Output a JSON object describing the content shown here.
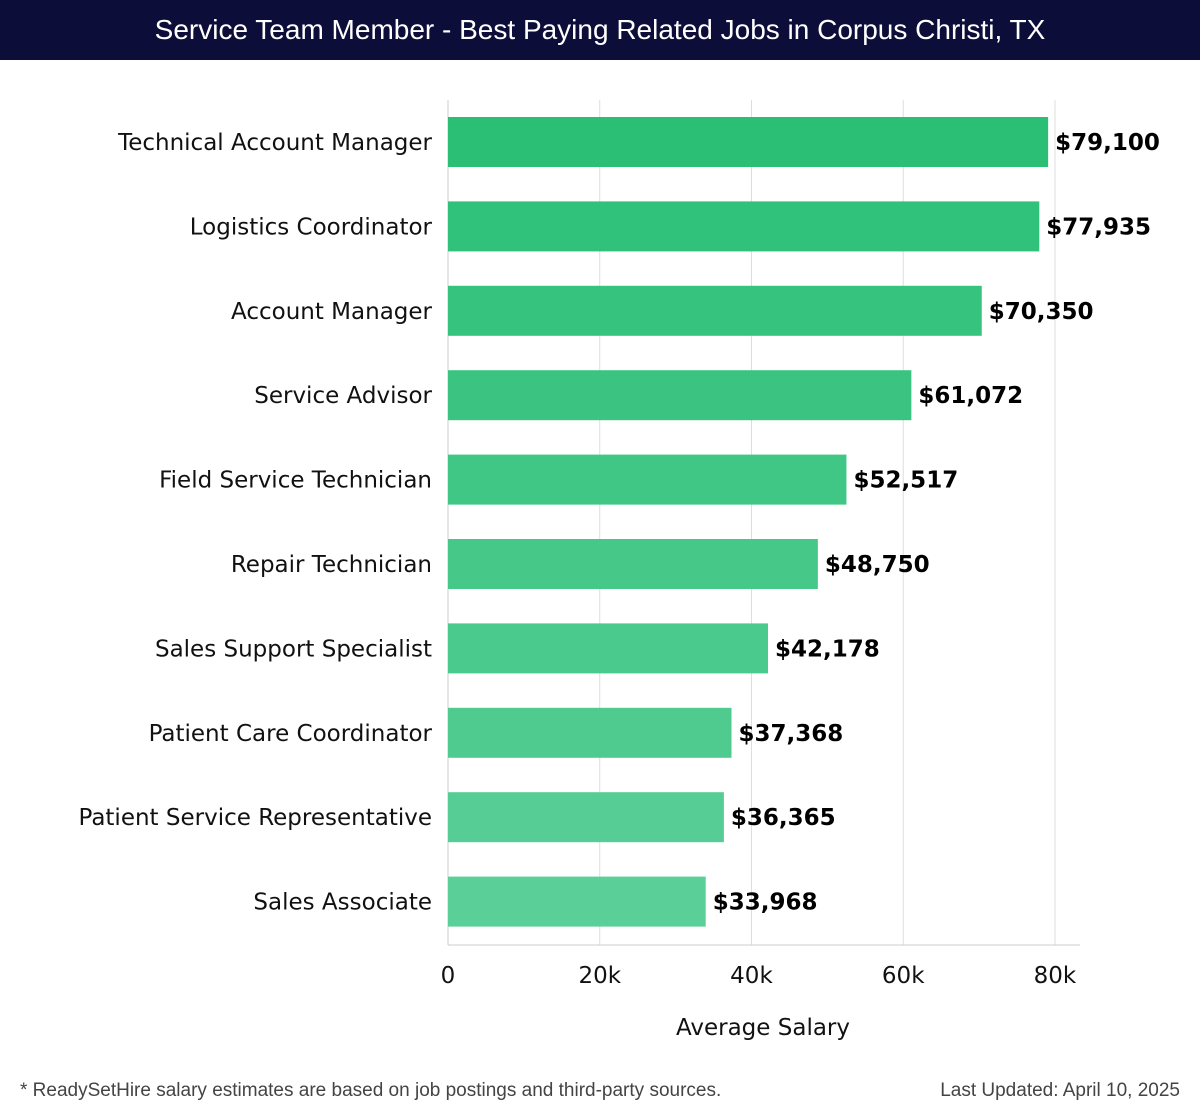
{
  "header": {
    "title": "Service Team Member - Best Paying Related Jobs in Corpus Christi, TX"
  },
  "chart_data": {
    "type": "bar",
    "orientation": "horizontal",
    "categories": [
      "Technical Account Manager",
      "Logistics Coordinator",
      "Account Manager",
      "Service Advisor",
      "Field Service Technician",
      "Repair Technician",
      "Sales Support Specialist",
      "Patient Care Coordinator",
      "Patient Service Representative",
      "Sales Associate"
    ],
    "values": [
      79100,
      77935,
      70350,
      61072,
      52517,
      48750,
      42178,
      37368,
      36365,
      33968
    ],
    "value_labels": [
      "$79,100",
      "$77,935",
      "$70,350",
      "$61,072",
      "$52,517",
      "$48,750",
      "$42,178",
      "$37,368",
      "$36,365",
      "$33,968"
    ],
    "xlim": [
      0,
      83300
    ],
    "xticks": [
      0,
      20000,
      40000,
      60000,
      80000
    ],
    "xtick_labels": [
      "0",
      "20k",
      "40k",
      "60k",
      "80k"
    ],
    "xlabel": "Average Salary",
    "ylabel": "",
    "grid": true,
    "colors": {
      "bar_top": "#2bbf76",
      "bar_bottom": "#5bcf98",
      "grid": "#dddddd",
      "axis": "#cccccc"
    }
  },
  "footer": {
    "note": "* ReadySetHire salary estimates are based on job postings and third-party sources.",
    "updated": "Last Updated: April 10, 2025"
  }
}
